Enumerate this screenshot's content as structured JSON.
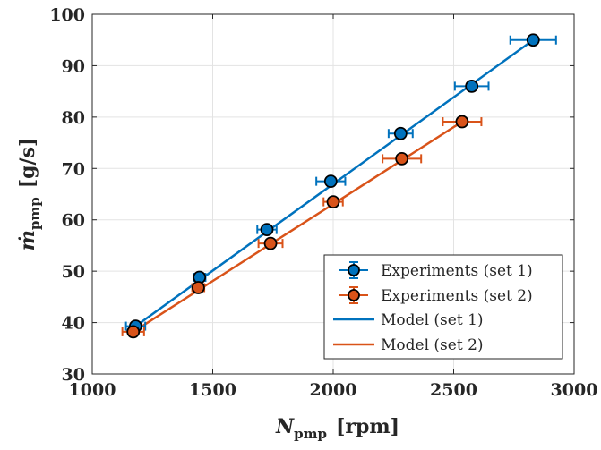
{
  "chart_data": {
    "type": "scatter",
    "xlabel": {
      "symbol": "N",
      "subscript": "pmp",
      "unit": "[rpm]"
    },
    "ylabel": {
      "symbol": "ṁ",
      "subscript": "pmp",
      "unit": "[g/s]"
    },
    "xlim": [
      1000,
      3000
    ],
    "ylim": [
      30,
      100
    ],
    "xticks": [
      1000,
      1500,
      2000,
      2500,
      3000
    ],
    "yticks": [
      30,
      40,
      50,
      60,
      70,
      80,
      90,
      100
    ],
    "grid": true,
    "legend_position": "bottom-right",
    "series": [
      {
        "name": "Experiments (set 1)",
        "kind": "errorbar-scatter",
        "color": "#0072BD",
        "points": [
          {
            "x": 1180,
            "y": 39.3,
            "xerr": 40
          },
          {
            "x": 1445,
            "y": 48.8,
            "xerr": 25
          },
          {
            "x": 1725,
            "y": 58.1,
            "xerr": 40
          },
          {
            "x": 1990,
            "y": 67.5,
            "xerr": 60
          },
          {
            "x": 2280,
            "y": 76.8,
            "xerr": 50
          },
          {
            "x": 2575,
            "y": 86.0,
            "xerr": 70
          },
          {
            "x": 2830,
            "y": 95.0,
            "xerr": 95
          }
        ]
      },
      {
        "name": "Experiments (set 2)",
        "kind": "errorbar-scatter",
        "color": "#D95319",
        "points": [
          {
            "x": 1170,
            "y": 38.2,
            "xerr": 45
          },
          {
            "x": 1440,
            "y": 46.8,
            "xerr": 25
          },
          {
            "x": 1740,
            "y": 55.4,
            "xerr": 50
          },
          {
            "x": 2000,
            "y": 63.5,
            "xerr": 40
          },
          {
            "x": 2285,
            "y": 71.9,
            "xerr": 80
          },
          {
            "x": 2535,
            "y": 79.1,
            "xerr": 80
          }
        ]
      },
      {
        "name": "Model (set 1)",
        "kind": "line",
        "color": "#0072BD",
        "x": [
          1180,
          2830
        ],
        "y": [
          39.3,
          95.0
        ]
      },
      {
        "name": "Model (set 2)",
        "kind": "line",
        "color": "#D95319",
        "x": [
          1170,
          2535
        ],
        "y": [
          38.2,
          79.1
        ]
      }
    ]
  }
}
